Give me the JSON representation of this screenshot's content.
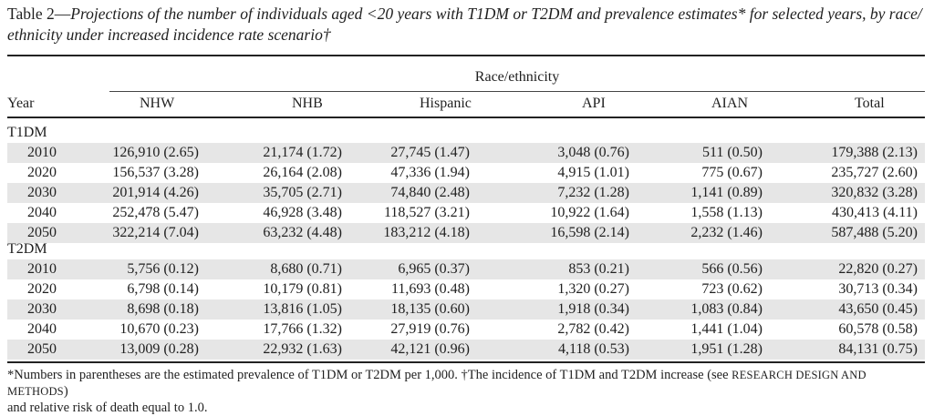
{
  "caption": {
    "label": "Table 2—",
    "text": "Projections of the number of individuals aged <20 years with T1DM or T2DM and prevalence estimates* for selected years, by race/ ethnicity under increased incidence rate scenario†"
  },
  "table": {
    "race_header": "Race/ethnicity",
    "columns": [
      "Year",
      "NHW",
      "NHB",
      "Hispanic",
      "API",
      "AIAN",
      "Total"
    ],
    "groups": [
      {
        "label": "T1DM",
        "rows": [
          {
            "year": "2010",
            "values": [
              "126,910 (2.65)",
              "21,174 (1.72)",
              "27,745 (1.47)",
              "3,048 (0.76)",
              "511 (0.50)",
              "179,388 (2.13)"
            ]
          },
          {
            "year": "2020",
            "values": [
              "156,537 (3.28)",
              "26,164 (2.08)",
              "47,336 (1.94)",
              "4,915 (1.01)",
              "775 (0.67)",
              "235,727 (2.60)"
            ]
          },
          {
            "year": "2030",
            "values": [
              "201,914 (4.26)",
              "35,705 (2.71)",
              "74,840 (2.48)",
              "7,232 (1.28)",
              "1,141 (0.89)",
              "320,832 (3.28)"
            ]
          },
          {
            "year": "2040",
            "values": [
              "252,478 (5.47)",
              "46,928 (3.48)",
              "118,527 (3.21)",
              "10,922 (1.64)",
              "1,558 (1.13)",
              "430,413 (4.11)"
            ]
          },
          {
            "year": "2050",
            "values": [
              "322,214 (7.04)",
              "63,232 (4.48)",
              "183,212 (4.18)",
              "16,598 (2.14)",
              "2,232 (1.46)",
              "587,488 (5.20)"
            ]
          }
        ]
      },
      {
        "label": "T2DM",
        "rows": [
          {
            "year": "2010",
            "values": [
              "5,756 (0.12)",
              "8,680 (0.71)",
              "6,965 (0.37)",
              "853 (0.21)",
              "566 (0.56)",
              "22,820 (0.27)"
            ]
          },
          {
            "year": "2020",
            "values": [
              "6,798 (0.14)",
              "10,179 (0.81)",
              "11,693 (0.48)",
              "1,320 (0.27)",
              "723 (0.62)",
              "30,713 (0.34)"
            ]
          },
          {
            "year": "2030",
            "values": [
              "8,698 (0.18)",
              "13,816 (1.05)",
              "18,135 (0.60)",
              "1,918 (0.34)",
              "1,083 (0.84)",
              "43,650 (0.45)"
            ]
          },
          {
            "year": "2040",
            "values": [
              "10,670 (0.23)",
              "17,766 (1.32)",
              "27,919 (0.76)",
              "2,782 (0.42)",
              "1,441 (1.04)",
              "60,578 (0.58)"
            ]
          },
          {
            "year": "2050",
            "values": [
              "13,009 (0.28)",
              "22,932 (1.63)",
              "42,121 (0.96)",
              "4,118 (0.53)",
              "1,951 (1.28)",
              "84,131 (0.75)"
            ]
          }
        ]
      }
    ]
  },
  "footnote": {
    "part1": "*Numbers in parentheses are the estimated prevalence of T1DM or T2DM per 1,000. †The incidence of T1DM and T2DM increase (see ",
    "smallcaps": "RESEARCH DESIGN AND METHODS",
    "part2": ")",
    "line2": "and relative risk of death equal to 1.0."
  },
  "colors": {
    "shade": "#e6e6e6",
    "rule": "#222222",
    "text": "#1f1f1f"
  }
}
